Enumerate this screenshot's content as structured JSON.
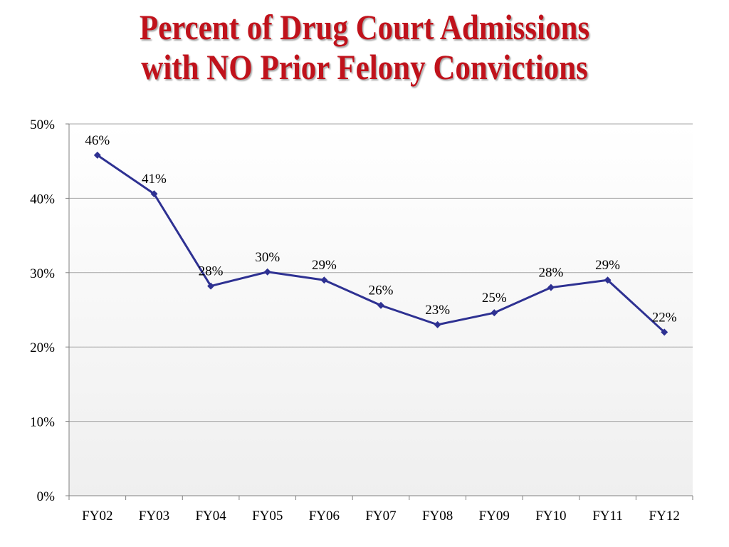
{
  "title_line1": "Percent of Drug Court Admissions",
  "title_line2": "with NO Prior Felony Convictions",
  "colors": {
    "title": "#c0121b",
    "line": "#2e3192",
    "grid": "#a6a6a6"
  },
  "chart_data": {
    "type": "line",
    "title": "Percent of Drug Court Admissions with NO Prior Felony Convictions",
    "categories": [
      "FY02",
      "FY03",
      "FY04",
      "FY05",
      "FY06",
      "FY07",
      "FY08",
      "FY09",
      "FY10",
      "FY11",
      "FY12"
    ],
    "values": [
      45.8,
      40.6,
      28.2,
      30.1,
      29.0,
      25.6,
      23.0,
      24.6,
      28.0,
      29.0,
      22.0
    ],
    "data_labels": [
      "46%",
      "41%",
      "28%",
      "30%",
      "29%",
      "26%",
      "23%",
      "25%",
      "28%",
      "29%",
      "22%"
    ],
    "ylim": [
      0,
      50
    ],
    "yticks": [
      0,
      10,
      20,
      30,
      40,
      50
    ],
    "ytick_labels": [
      "0%",
      "10%",
      "20%",
      "30%",
      "40%",
      "50%"
    ],
    "grid": true,
    "marker": "diamond",
    "xlabel": "",
    "ylabel": ""
  }
}
